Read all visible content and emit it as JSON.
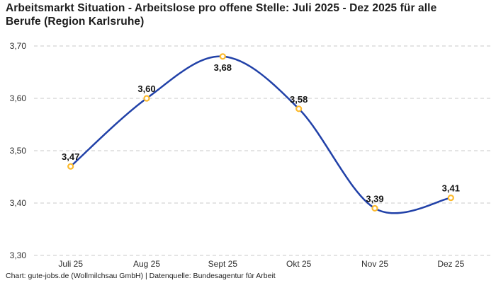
{
  "header": {
    "title": "Arbeitsmarkt Situation - Arbeitslose pro offene Stelle: Juli 2025 - Dez 2025 für alle Berufe (Region Karlsruhe)"
  },
  "footer": {
    "credit": "Chart: gute-jobs.de (Wollmilchsau GmbH) | Datenquelle: Bundesagentur für Arbeit"
  },
  "chart_data": {
    "type": "line",
    "title": "Arbeitsmarkt Situation - Arbeitslose pro offene Stelle: Juli 2025 - Dez 2025 für alle Berufe (Region Karlsruhe)",
    "xlabel": "",
    "ylabel": "",
    "categories": [
      "Juli 25",
      "Aug 25",
      "Sept 25",
      "Okt 25",
      "Nov 25",
      "Dez 25"
    ],
    "values": [
      3.47,
      3.6,
      3.68,
      3.58,
      3.39,
      3.41
    ],
    "value_labels": [
      "3,47",
      "3,60",
      "3,68",
      "3,58",
      "3,39",
      "3,41"
    ],
    "label_position": [
      "above",
      "above",
      "below",
      "above",
      "above",
      "above"
    ],
    "y_ticks": [
      3.3,
      3.4,
      3.5,
      3.6,
      3.7
    ],
    "y_tick_labels": [
      "3,30",
      "3,40",
      "3,50",
      "3,60",
      "3,70"
    ],
    "ylim": [
      3.3,
      3.7
    ],
    "grid": "horizontal-dashed",
    "legend": "none",
    "smooth": true,
    "line_color": "#2141a8",
    "marker_stroke": "#fcba2d",
    "marker_fill": "#ffffff",
    "grid_color": "#c9c9c9"
  }
}
